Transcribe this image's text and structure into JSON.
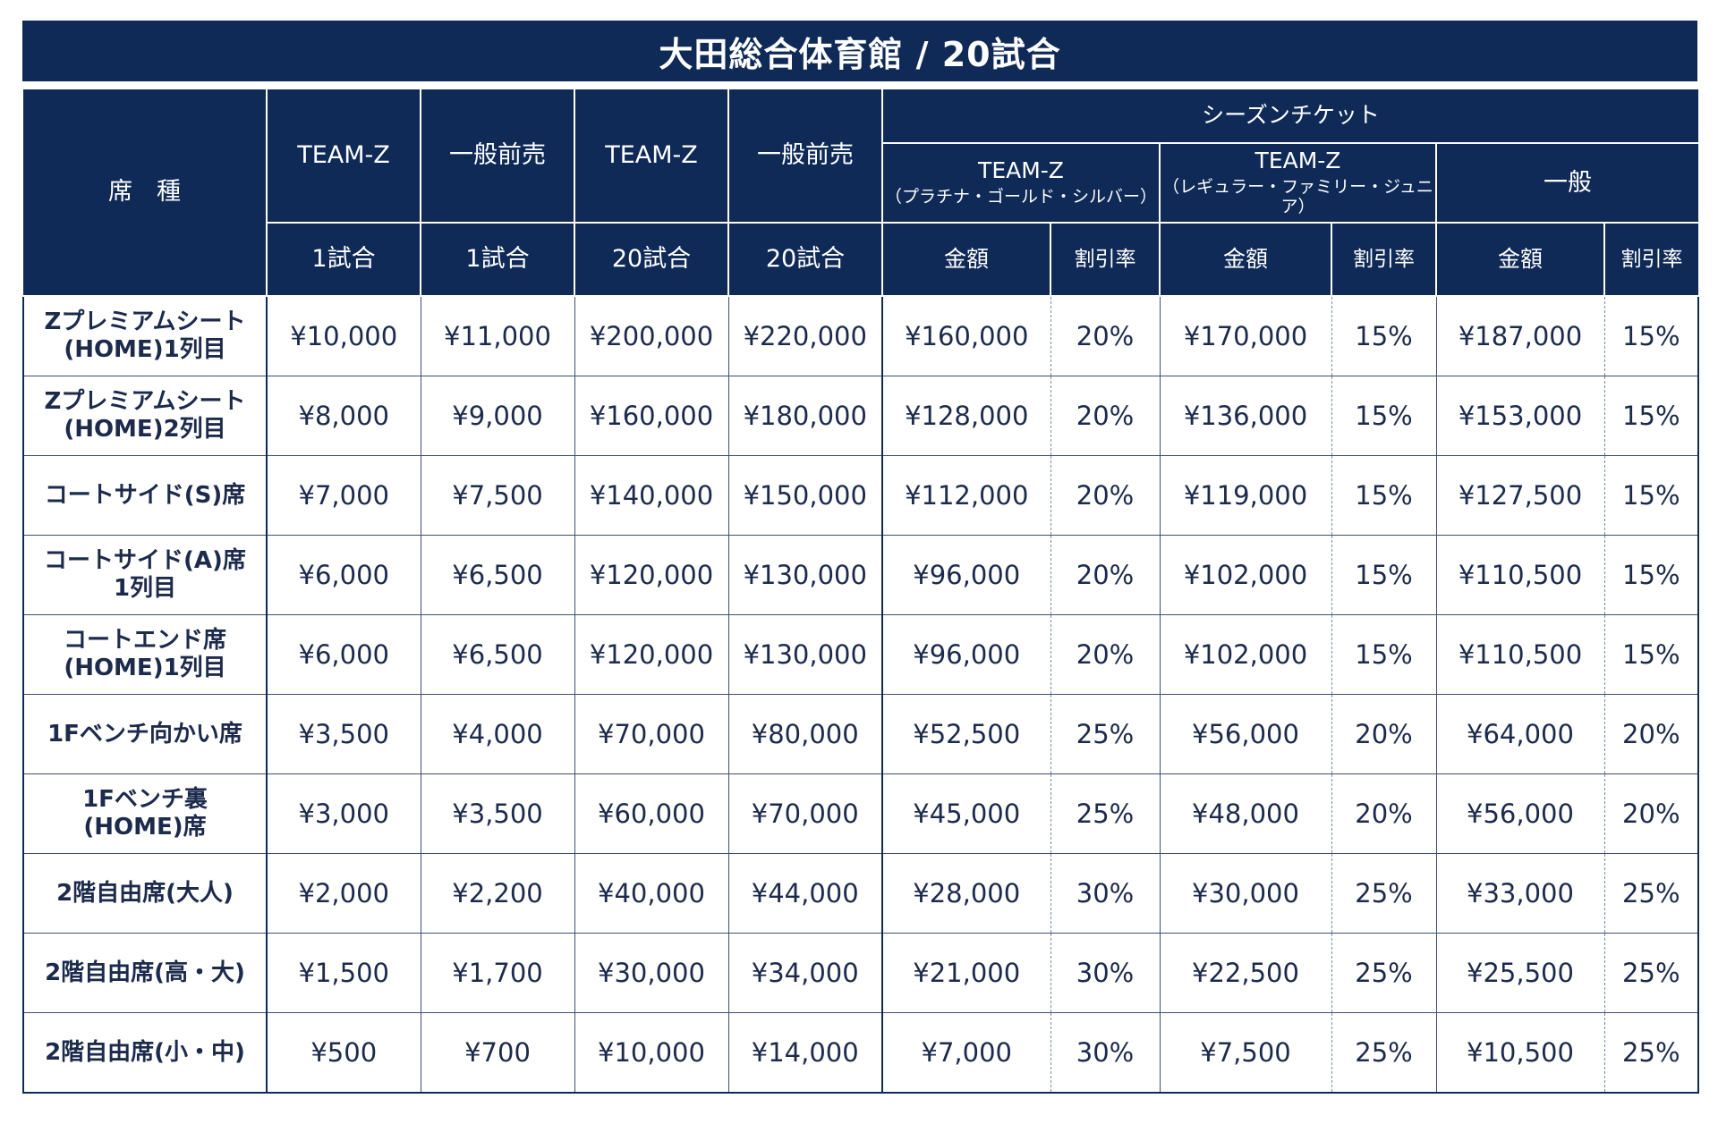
{
  "title": "大田総合体育館 / 20試合",
  "colors": {
    "header_bg": "#0f2a57",
    "header_text": "#ffffff",
    "body_text": "#1c2a4c",
    "grid": "#3d4f73"
  },
  "header": {
    "seat_type": "席　種",
    "col1": {
      "top": "TEAM-Z",
      "bottom": "1試合"
    },
    "col2": {
      "top": "一般前売",
      "bottom": "1試合"
    },
    "col3": {
      "top": "TEAM-Z",
      "bottom": "20試合"
    },
    "col4": {
      "top": "一般前売",
      "bottom": "20試合"
    },
    "season": {
      "label": "シーズンチケット",
      "groups": [
        {
          "name": "TEAM-Z",
          "sub": "（プラチナ・ゴールド・シルバー）",
          "amount": "金額",
          "rate": "割引率"
        },
        {
          "name": "TEAM-Z",
          "sub": "（レギュラー・ファミリー・ジュニア）",
          "amount": "金額",
          "rate": "割引率"
        },
        {
          "name": "一般",
          "sub": "",
          "amount": "金額",
          "rate": "割引率"
        }
      ]
    }
  },
  "rows": [
    {
      "seat": [
        "Zプレミアムシート",
        "(HOME)1列目"
      ],
      "c1": "¥10,000",
      "c2": "¥11,000",
      "c3": "¥200,000",
      "c4": "¥220,000",
      "g1a": "¥160,000",
      "g1r": "20%",
      "g2a": "¥170,000",
      "g2r": "15%",
      "g3a": "¥187,000",
      "g3r": "15%"
    },
    {
      "seat": [
        "Zプレミアムシート",
        "(HOME)2列目"
      ],
      "c1": "¥8,000",
      "c2": "¥9,000",
      "c3": "¥160,000",
      "c4": "¥180,000",
      "g1a": "¥128,000",
      "g1r": "20%",
      "g2a": "¥136,000",
      "g2r": "15%",
      "g3a": "¥153,000",
      "g3r": "15%"
    },
    {
      "seat": [
        "コートサイド(S)席"
      ],
      "c1": "¥7,000",
      "c2": "¥7,500",
      "c3": "¥140,000",
      "c4": "¥150,000",
      "g1a": "¥112,000",
      "g1r": "20%",
      "g2a": "¥119,000",
      "g2r": "15%",
      "g3a": "¥127,500",
      "g3r": "15%"
    },
    {
      "seat": [
        "コートサイド(A)席",
        "1列目"
      ],
      "c1": "¥6,000",
      "c2": "¥6,500",
      "c3": "¥120,000",
      "c4": "¥130,000",
      "g1a": "¥96,000",
      "g1r": "20%",
      "g2a": "¥102,000",
      "g2r": "15%",
      "g3a": "¥110,500",
      "g3r": "15%"
    },
    {
      "seat": [
        "コートエンド席",
        "(HOME)1列目"
      ],
      "c1": "¥6,000",
      "c2": "¥6,500",
      "c3": "¥120,000",
      "c4": "¥130,000",
      "g1a": "¥96,000",
      "g1r": "20%",
      "g2a": "¥102,000",
      "g2r": "15%",
      "g3a": "¥110,500",
      "g3r": "15%"
    },
    {
      "seat": [
        "1Fベンチ向かい席"
      ],
      "c1": "¥3,500",
      "c2": "¥4,000",
      "c3": "¥70,000",
      "c4": "¥80,000",
      "g1a": "¥52,500",
      "g1r": "25%",
      "g2a": "¥56,000",
      "g2r": "20%",
      "g3a": "¥64,000",
      "g3r": "20%"
    },
    {
      "seat": [
        "1Fベンチ裏",
        "(HOME)席"
      ],
      "c1": "¥3,000",
      "c2": "¥3,500",
      "c3": "¥60,000",
      "c4": "¥70,000",
      "g1a": "¥45,000",
      "g1r": "25%",
      "g2a": "¥48,000",
      "g2r": "20%",
      "g3a": "¥56,000",
      "g3r": "20%"
    },
    {
      "seat": [
        "2階自由席(大人)"
      ],
      "c1": "¥2,000",
      "c2": "¥2,200",
      "c3": "¥40,000",
      "c4": "¥44,000",
      "g1a": "¥28,000",
      "g1r": "30%",
      "g2a": "¥30,000",
      "g2r": "25%",
      "g3a": "¥33,000",
      "g3r": "25%"
    },
    {
      "seat": [
        "2階自由席(高・大)"
      ],
      "c1": "¥1,500",
      "c2": "¥1,700",
      "c3": "¥30,000",
      "c4": "¥34,000",
      "g1a": "¥21,000",
      "g1r": "30%",
      "g2a": "¥22,500",
      "g2r": "25%",
      "g3a": "¥25,500",
      "g3r": "25%"
    },
    {
      "seat": [
        "2階自由席(小・中)"
      ],
      "c1": "¥500",
      "c2": "¥700",
      "c3": "¥10,000",
      "c4": "¥14,000",
      "g1a": "¥7,000",
      "g1r": "30%",
      "g2a": "¥7,500",
      "g2r": "25%",
      "g3a": "¥10,500",
      "g3r": "25%"
    }
  ]
}
